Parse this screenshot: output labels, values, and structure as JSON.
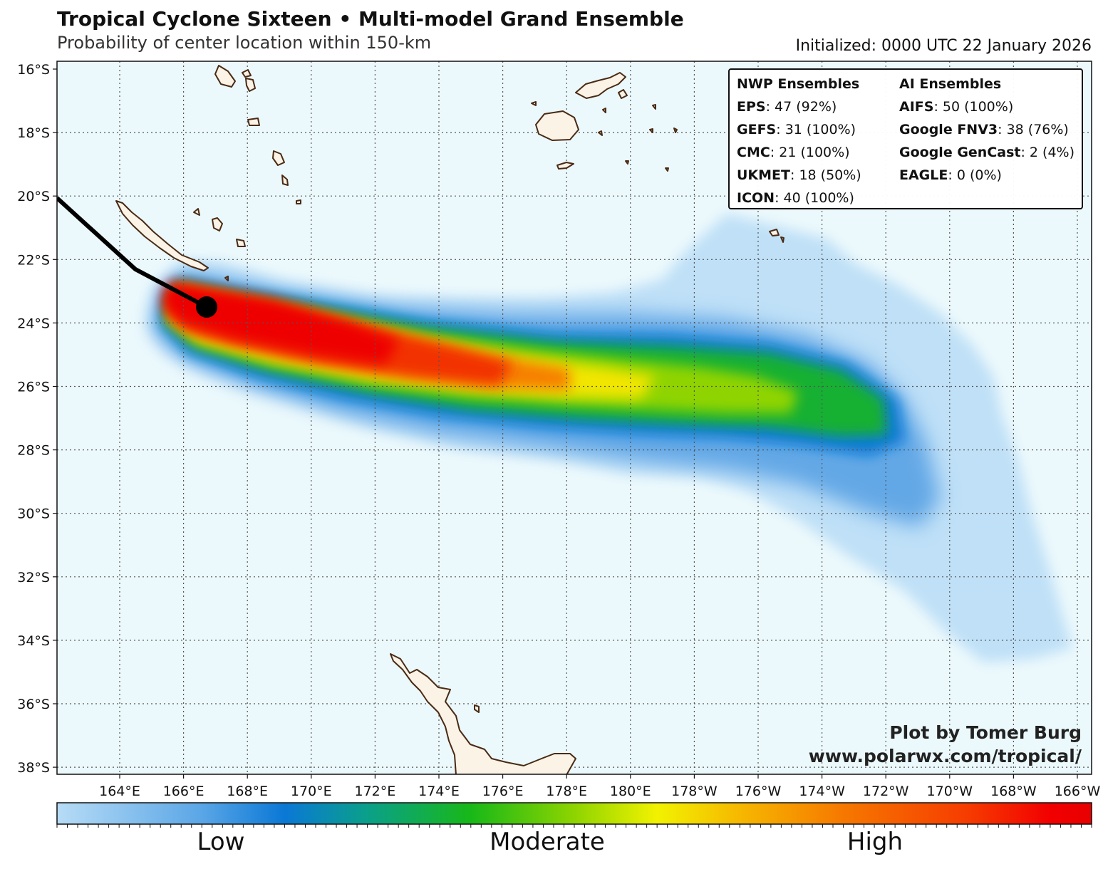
{
  "header": {
    "title": "Tropical Cyclone Sixteen • Multi-model Grand Ensemble",
    "subtitle": "Probability of center location within 150-km",
    "initialized": "Initialized: 0000 UTC 22 January 2026"
  },
  "map": {
    "lat_labels": [
      "16°S",
      "18°S",
      "20°S",
      "22°S",
      "24°S",
      "26°S",
      "28°S",
      "30°S",
      "32°S",
      "34°S",
      "36°S",
      "38°S"
    ],
    "lon_labels": [
      "164°E",
      "166°E",
      "168°E",
      "170°E",
      "172°E",
      "174°E",
      "176°E",
      "178°E",
      "180°E",
      "178°W",
      "176°W",
      "174°W",
      "172°W",
      "170°W",
      "168°W",
      "166°W"
    ],
    "ocean_color": "#ecf9fc",
    "land_color": "#fbf3e6",
    "coast_color": "#4a2a14",
    "track_color": "#000000",
    "current_position_marker": "black-dot"
  },
  "legend": {
    "nwp_header": "NWP Ensembles",
    "ai_header": "AI Ensembles",
    "nwp": [
      {
        "name": "EPS",
        "value": ": 47 (92%)"
      },
      {
        "name": "GEFS",
        "value": ": 31 (100%)"
      },
      {
        "name": "CMC",
        "value": ": 21 (100%)"
      },
      {
        "name": "UKMET",
        "value": ": 18 (50%)"
      },
      {
        "name": "ICON",
        "value": ": 40 (100%)"
      }
    ],
    "ai": [
      {
        "name": "AIFS",
        "value": ": 50 (100%)"
      },
      {
        "name": "Google FNV3",
        "value": ": 38 (76%)"
      },
      {
        "name": "Google GenCast",
        "value": ": 2 (4%)"
      },
      {
        "name": "EAGLE",
        "value": ": 0 (0%)"
      }
    ]
  },
  "credit": {
    "line1": "Plot by Tomer Burg",
    "line2": "www.polarwx.com/tropical/"
  },
  "colorbar": {
    "low": "Low",
    "moderate": "Moderate",
    "high": "High",
    "colors": [
      "#b7dcf6",
      "#5aa6e6",
      "#0a78d6",
      "#0aa08a",
      "#18b818",
      "#8ed400",
      "#f2f200",
      "#f6b800",
      "#f67800",
      "#f63c00",
      "#f20000",
      "#e80000"
    ]
  }
}
